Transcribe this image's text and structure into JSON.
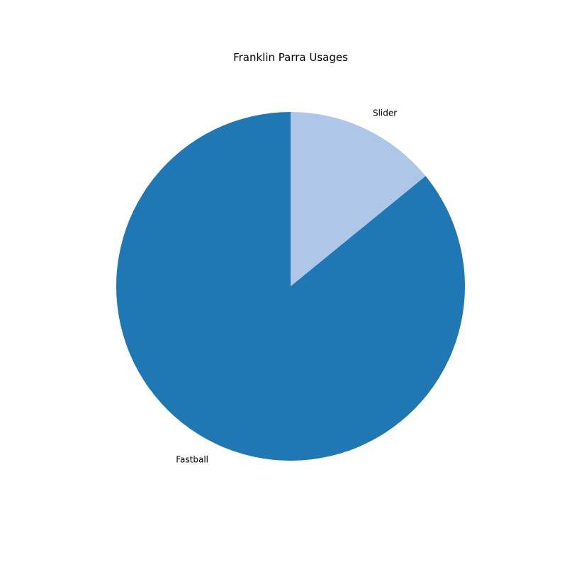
{
  "chart_data": {
    "type": "pie",
    "title": "Franklin Parra Usages",
    "slices": [
      {
        "label": "Slider",
        "value": 14.1,
        "color": "#aec7e8"
      },
      {
        "label": "Fastball",
        "value": 85.9,
        "color": "#1f77b4"
      }
    ],
    "start_angle_deg": 90,
    "direction": "clockwise"
  }
}
